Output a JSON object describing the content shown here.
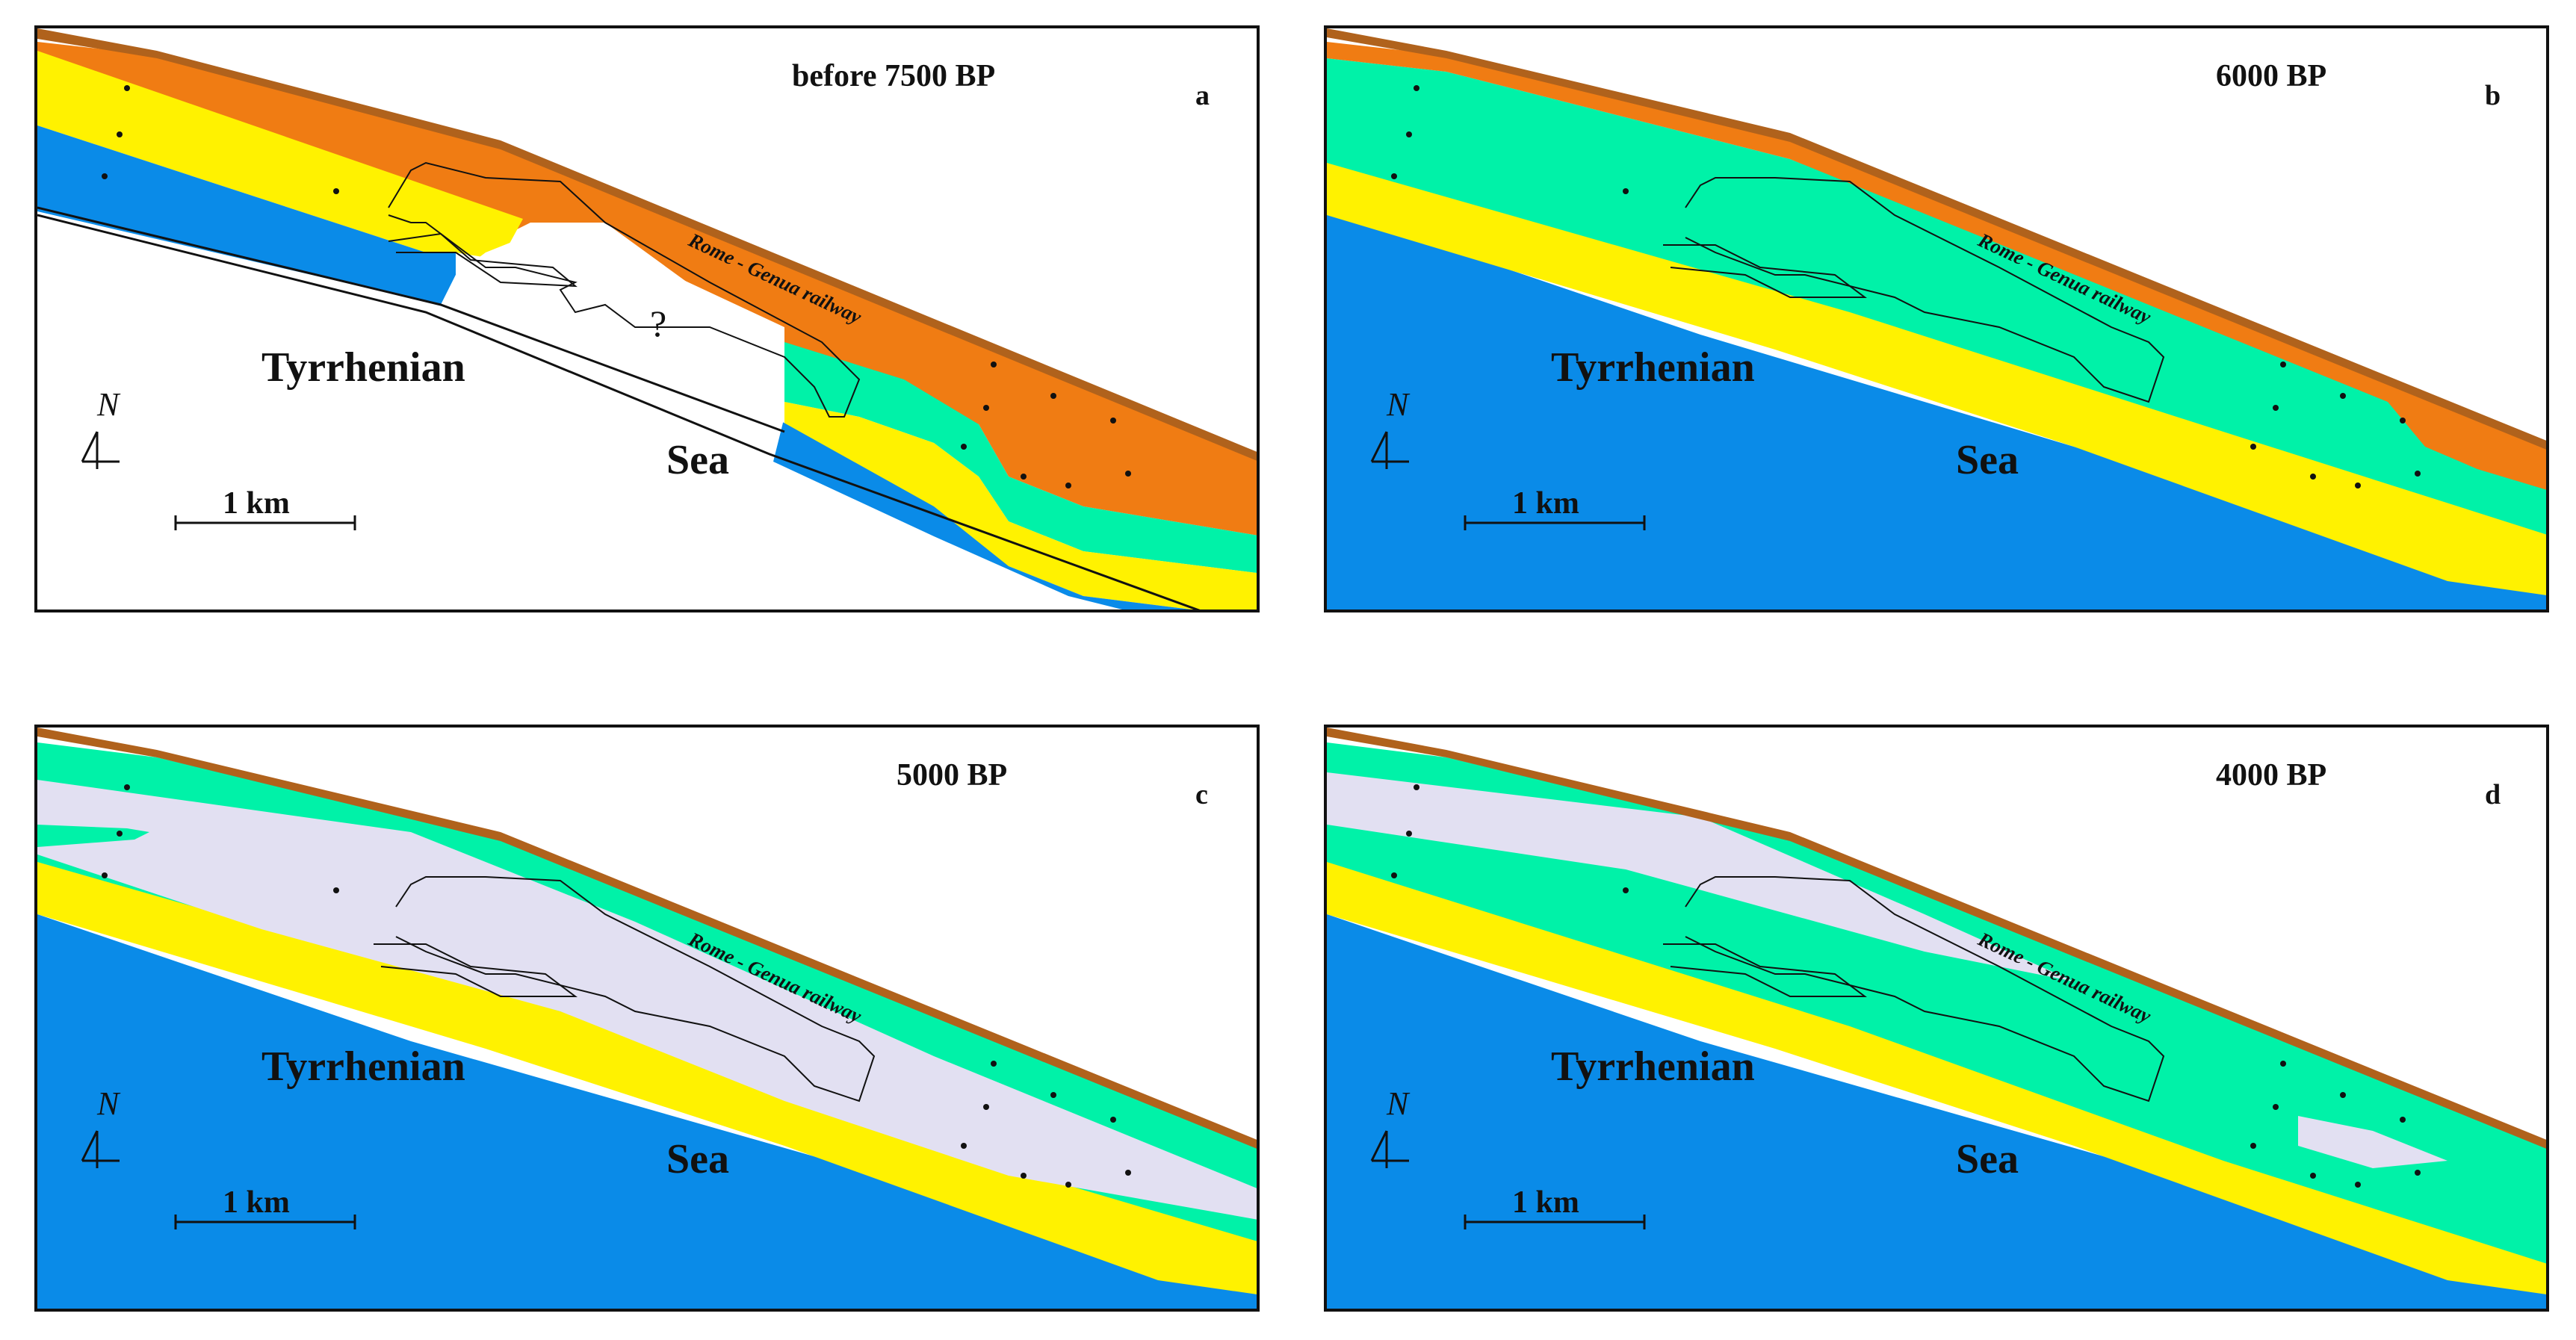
{
  "colors": {
    "orange": "#f07c13",
    "yellow": "#fff200",
    "green": "#00f2a8",
    "blue": "#0a8be8",
    "lavender": "#e2e0f2",
    "brown": "#b0621c",
    "line": "#111111"
  },
  "labels": {
    "sea_word_1": "Tyrrhenian",
    "sea_word_2": "Sea",
    "railway": "Rome - Genua railway",
    "north": "N",
    "scale": "1 km"
  },
  "panels": [
    {
      "letter": "a",
      "period": "before 7500 BP",
      "uncertain_mark": "?"
    },
    {
      "letter": "b",
      "period": "6000 BP"
    },
    {
      "letter": "c",
      "period": "5000 BP"
    },
    {
      "letter": "d",
      "period": "4000 BP"
    }
  ]
}
